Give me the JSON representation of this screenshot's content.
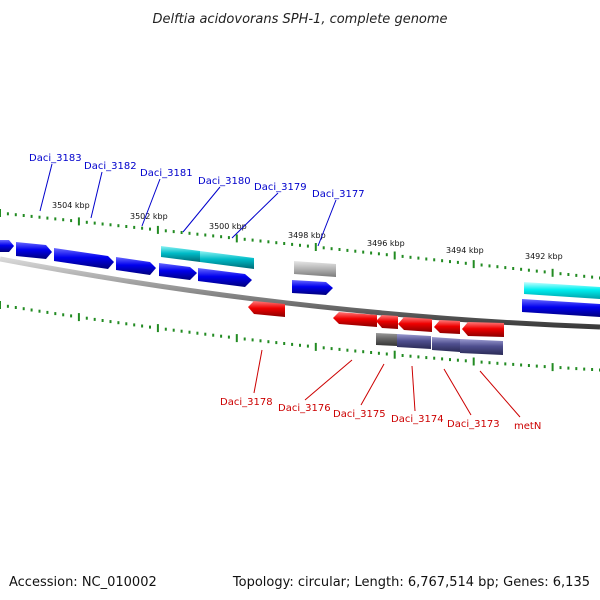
{
  "title": "Delftia acidovorans SPH-1, complete genome",
  "footer": {
    "accession": "Accession: NC_010002",
    "summary": "Topology: circular; Length: 6,767,514 bp; Genes: 6,135"
  },
  "colors": {
    "forward_gene": "#0000ee",
    "forward_gene_alt": "#00b8c8",
    "reverse_gene": "#ee0000",
    "reverse_gene_alt": "#505090",
    "pseudo_gene": "#b8b8b8",
    "tick": "#228b22",
    "backbone": "#8a8a8a"
  },
  "ticks": [
    "3504 kbp",
    "3502 kbp",
    "3500 kbp",
    "3498 kbp",
    "3496 kbp",
    "3494 kbp",
    "3492 kbp"
  ],
  "forward_labels": [
    "Daci_3183",
    "Daci_3182",
    "Daci_3181",
    "Daci_3180",
    "Daci_3179",
    "Daci_3177"
  ],
  "reverse_labels": [
    "Daci_3178",
    "Daci_3176",
    "Daci_3175",
    "Daci_3174",
    "Daci_3173",
    "metN"
  ]
}
